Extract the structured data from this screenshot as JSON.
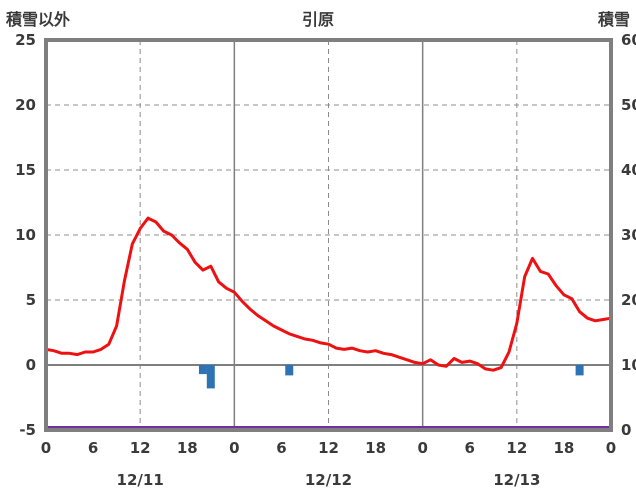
{
  "header": {
    "left_label": "積雪以外",
    "title": "引原",
    "right_label": "積雪"
  },
  "colors": {
    "border": "#7f7f7f",
    "grid": "#8c8c8c",
    "zero_line": "#7f7f7f",
    "temperature": "#ee1111",
    "precipitation": "#2e74b5",
    "snow_depth": "#7030a0",
    "text": "#3a3a3a",
    "background": "#ffffff"
  },
  "chart_data": {
    "type": "line",
    "title": "引原",
    "left_axis": {
      "label": "積雪以外",
      "min": -5,
      "max": 25,
      "ticks": [
        25,
        20,
        15,
        10,
        5,
        0,
        -5
      ]
    },
    "right_axis": {
      "label": "積雪",
      "min": 0,
      "max": 60,
      "ticks": [
        60,
        50,
        40,
        30,
        20,
        10,
        0
      ]
    },
    "x_axis": {
      "min_hour": 0,
      "max_hour": 72,
      "tick_hours": [
        0,
        6,
        12,
        18,
        24,
        30,
        36,
        42,
        48,
        54,
        60,
        66,
        72
      ],
      "tick_labels": [
        "0",
        "6",
        "12",
        "18",
        "0",
        "6",
        "12",
        "18",
        "0",
        "6",
        "12",
        "18",
        "0"
      ],
      "date_labels": [
        {
          "text": "12/11",
          "hour": 12
        },
        {
          "text": "12/12",
          "hour": 36
        },
        {
          "text": "12/13",
          "hour": 60
        }
      ]
    },
    "gridlines": {
      "h_dashed_values": [
        20,
        15,
        10,
        5
      ],
      "h_zero_value": 0,
      "v_solid_hours": [
        24,
        48
      ],
      "v_dashed_hours": [
        12,
        36,
        60
      ]
    },
    "series": [
      {
        "name": "temperature",
        "type": "line",
        "axis": "left",
        "color": "#ee1111",
        "hours": [
          0,
          1,
          2,
          3,
          4,
          5,
          6,
          7,
          8,
          9,
          10,
          11,
          12,
          13,
          14,
          15,
          16,
          17,
          18,
          19,
          20,
          21,
          22,
          23,
          24,
          25,
          26,
          27,
          28,
          29,
          30,
          31,
          32,
          33,
          34,
          35,
          36,
          37,
          38,
          39,
          40,
          41,
          42,
          43,
          44,
          45,
          46,
          47,
          48,
          49,
          50,
          51,
          52,
          53,
          54,
          55,
          56,
          57,
          58,
          59,
          60,
          61,
          62,
          63,
          64,
          65,
          66,
          67,
          68,
          69,
          70,
          71,
          72
        ],
        "values": [
          1.2,
          1.1,
          0.9,
          0.9,
          0.8,
          1.0,
          1.0,
          1.2,
          1.6,
          3.0,
          6.5,
          9.3,
          10.5,
          11.3,
          11.0,
          10.3,
          10.0,
          9.4,
          8.9,
          7.9,
          7.3,
          7.6,
          6.4,
          5.9,
          5.6,
          4.9,
          4.3,
          3.8,
          3.4,
          3.0,
          2.7,
          2.4,
          2.2,
          2.0,
          1.9,
          1.7,
          1.6,
          1.3,
          1.2,
          1.3,
          1.1,
          1.0,
          1.1,
          0.9,
          0.8,
          0.6,
          0.4,
          0.2,
          0.1,
          0.4,
          0.0,
          -0.1,
          0.5,
          0.2,
          0.3,
          0.1,
          -0.3,
          -0.4,
          -0.2,
          1.0,
          3.2,
          6.8,
          8.2,
          7.2,
          7.0,
          6.1,
          5.4,
          5.1,
          4.1,
          3.6,
          3.4,
          3.5,
          3.6
        ]
      },
      {
        "name": "precipitation",
        "type": "bar",
        "axis": "left",
        "color": "#2e74b5",
        "points": [
          {
            "hour": 20,
            "value": -0.7
          },
          {
            "hour": 21,
            "value": -1.8
          },
          {
            "hour": 31,
            "value": -0.8
          },
          {
            "hour": 68,
            "value": -0.8
          }
        ]
      },
      {
        "name": "snow_depth",
        "type": "line",
        "axis": "right",
        "color": "#7030a0",
        "constant_value": 0
      }
    ]
  }
}
